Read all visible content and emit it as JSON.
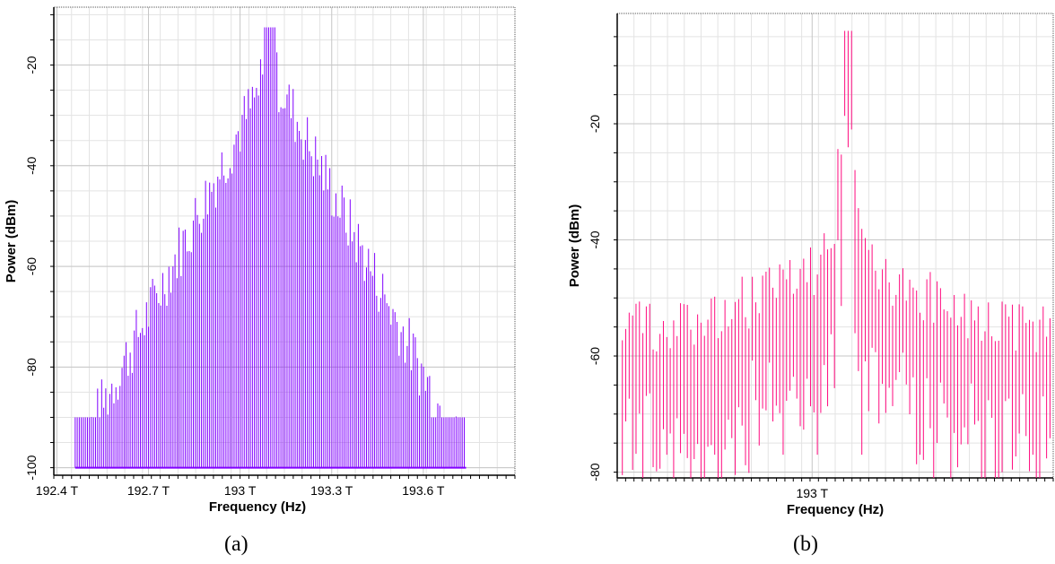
{
  "chart_data": [
    {
      "type": "line",
      "panel": "a",
      "caption": "(a)",
      "xlabel": "Frequency (Hz)",
      "ylabel": "Power (dBm)",
      "xticks": [
        "192.4 T",
        "192.7 T",
        "193 T",
        "193.3 T",
        "193.6 T"
      ],
      "xtick_values": [
        192.4,
        192.7,
        193.0,
        193.3,
        193.6
      ],
      "yticks": [
        "-20",
        "-40",
        "-60",
        "-80",
        "-100"
      ],
      "ytick_values": [
        -20,
        -40,
        -60,
        -80,
        -100
      ],
      "xlim": [
        192.39,
        193.9
      ],
      "ylim": [
        -101.5,
        -8.5
      ],
      "grid": true,
      "series": [
        {
          "color": "#8000ff",
          "center": 193.1,
          "peak": -12.5,
          "floor": -100,
          "edge_top": -90,
          "x_start": 192.46,
          "x_end": 193.74,
          "line_spacing": 0.00667
        }
      ]
    },
    {
      "type": "line",
      "panel": "b",
      "caption": "(b)",
      "xlabel": "Frequency (Hz)",
      "ylabel": "Power (dBm)",
      "xticks": [
        "193 T"
      ],
      "xtick_values": [
        193.0
      ],
      "yticks": [
        "-20",
        "-40",
        "-60",
        "-80"
      ],
      "ytick_values": [
        -20,
        -40,
        -60,
        -80
      ],
      "xlim": [
        192.62,
        193.47
      ],
      "ylim": [
        -81,
        -1
      ],
      "grid": true,
      "series": [
        {
          "color": "#ff0b7f",
          "center": 193.07,
          "peak": -4,
          "floor": -70,
          "edge_top": -50,
          "x_start": 192.63,
          "x_end": 193.47,
          "line_spacing": 0.00667
        }
      ]
    }
  ]
}
